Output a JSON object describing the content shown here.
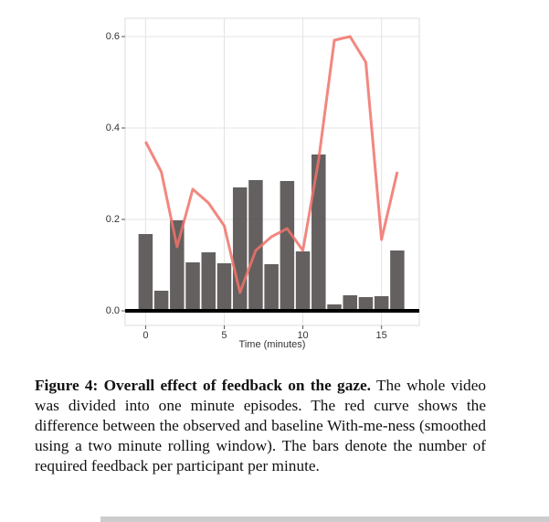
{
  "chart_data": {
    "type": "bar",
    "x_label": "Time (minutes)",
    "x": [
      0,
      1,
      2,
      3,
      4,
      5,
      6,
      7,
      8,
      9,
      10,
      11,
      12,
      13,
      14,
      15,
      16
    ],
    "series": [
      {
        "type": "bar",
        "color": "#5b5756",
        "values": [
          0.168,
          0.044,
          0.198,
          0.106,
          0.128,
          0.104,
          0.27,
          0.286,
          0.102,
          0.284,
          0.13,
          0.342,
          0.014,
          0.034,
          0.03,
          0.032,
          0.132
        ]
      },
      {
        "type": "line",
        "color": "#f0726a",
        "values": [
          0.37,
          0.304,
          0.14,
          0.266,
          0.236,
          0.186,
          0.04,
          0.132,
          0.162,
          0.18,
          0.132,
          0.33,
          0.592,
          0.6,
          0.544,
          0.156,
          0.304
        ]
      }
    ],
    "xlim": [
      -1.3,
      17.4
    ],
    "xticks": [
      0,
      5,
      10,
      15
    ],
    "ylim": [
      -0.032,
      0.64
    ],
    "yticks": [
      {
        "value": 0,
        "label": "0.0"
      },
      0.2,
      0.4,
      0.6
    ],
    "grid": true
  },
  "caption": {
    "lead": "Figure 4: Overall effect of feedback on the gaze.",
    "text": "The whole video was divided into one minute episodes. The red curve shows the difference between the observed and baseline With-me-ness (smoothed using a two minute rolling window). The bars denote the number of required feedback per participant per minute."
  }
}
